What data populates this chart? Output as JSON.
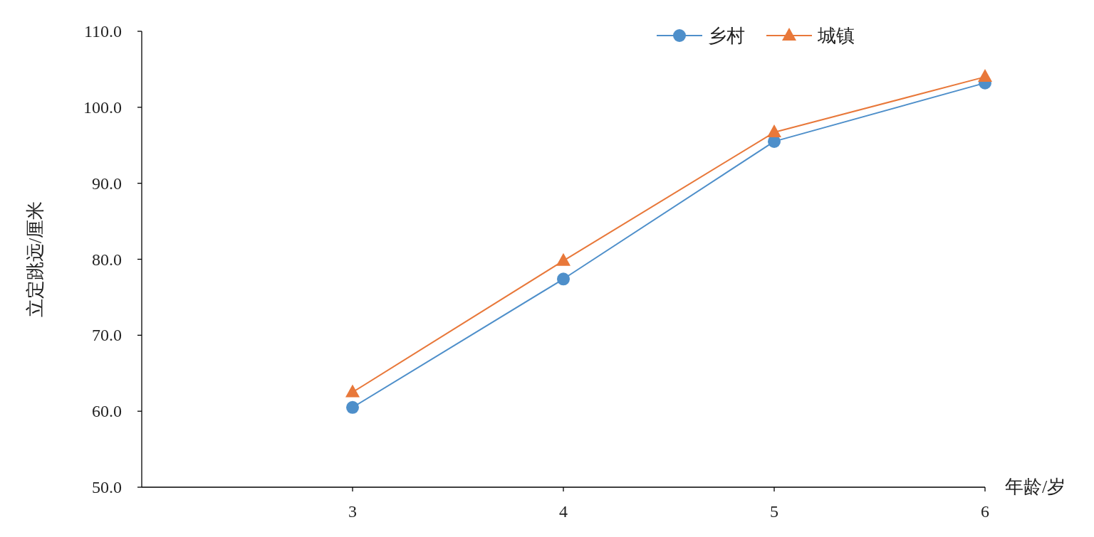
{
  "chart_data": {
    "type": "line",
    "xlabel": "年龄/岁",
    "ylabel": "立定跳远/厘米",
    "x": [
      3,
      4,
      5,
      6
    ],
    "xlim": [
      2,
      6
    ],
    "xticks": [
      3,
      4,
      5,
      6
    ],
    "ylim": [
      50,
      110
    ],
    "yticks": [
      {
        "value": 50,
        "label": "50.0"
      },
      {
        "value": 60,
        "label": "60.0"
      },
      {
        "value": 70,
        "label": "70.0"
      },
      {
        "value": 80,
        "label": "80.0"
      },
      {
        "value": 90,
        "label": "90.0"
      },
      {
        "value": 100,
        "label": "100.0"
      },
      {
        "value": 110,
        "label": "110.0"
      }
    ],
    "grid": false,
    "legend": "top",
    "line_style": "solid",
    "series": [
      {
        "name": "乡村",
        "color": "#4e8fca",
        "marker": "circle",
        "values": [
          60.5,
          77.4,
          95.5,
          103.2
        ]
      },
      {
        "name": "城镇",
        "color": "#e8783a",
        "marker": "triangle",
        "values": [
          62.5,
          79.8,
          96.7,
          104.0
        ]
      }
    ]
  }
}
